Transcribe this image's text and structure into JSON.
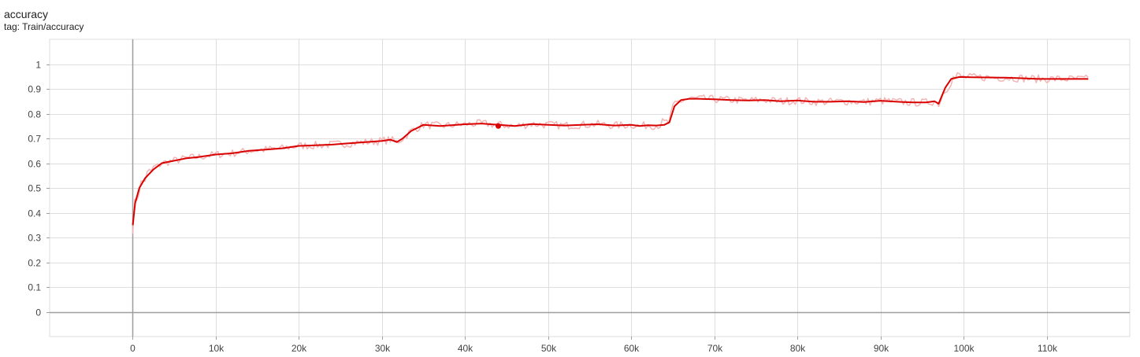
{
  "card": {
    "title": "accuracy",
    "subtitle": "tag: Train/accuracy"
  },
  "chart_data": {
    "type": "line",
    "title": "accuracy",
    "subtitle": "tag: Train/accuracy",
    "xlabel": "",
    "ylabel": "",
    "xlim": [
      -10000,
      120000
    ],
    "ylim": [
      -0.1,
      1.1
    ],
    "x_ticks": [
      0,
      10000,
      20000,
      30000,
      40000,
      50000,
      60000,
      70000,
      80000,
      90000,
      100000,
      110000
    ],
    "x_tick_labels": [
      "0",
      "10k",
      "20k",
      "30k",
      "40k",
      "50k",
      "60k",
      "70k",
      "80k",
      "90k",
      "100k",
      "110k"
    ],
    "y_ticks": [
      0,
      0.1,
      0.2,
      0.3,
      0.4,
      0.5,
      0.6,
      0.7,
      0.8,
      0.9,
      1
    ],
    "y_tick_labels": [
      "0",
      "0.1",
      "0.2",
      "0.3",
      "0.4",
      "0.5",
      "0.6",
      "0.7",
      "0.8",
      "0.9",
      "1"
    ],
    "grid": true,
    "colors": {
      "smoothed": "#d90000",
      "raw": "#f4b4b4",
      "axis": "#9e9e9e",
      "grid": "#dddddd"
    },
    "series": [
      {
        "role": "smoothed",
        "x": [
          0,
          300,
          800,
          1500,
          2500,
          3500,
          5000,
          6500,
          8000,
          10000,
          12000,
          14000,
          16000,
          18000,
          20000,
          22000,
          24000,
          26000,
          28000,
          30000,
          31000,
          31800,
          32500,
          33500,
          35000,
          37000,
          40000,
          42000,
          44000,
          46000,
          48000,
          50000,
          52000,
          54000,
          56000,
          58000,
          60000,
          61000,
          62000,
          63000,
          64000,
          64600,
          65200,
          66000,
          67000,
          68000,
          70000,
          72000,
          74000,
          76000,
          78000,
          80000,
          82000,
          84000,
          86000,
          88000,
          90000,
          92000,
          94000,
          95500,
          96500,
          97000,
          97800,
          98500,
          99500,
          101000,
          103000,
          105000,
          107000,
          109000,
          111000,
          113000,
          115000
        ],
        "y": [
          0.35,
          0.44,
          0.5,
          0.54,
          0.575,
          0.6,
          0.61,
          0.62,
          0.625,
          0.635,
          0.64,
          0.65,
          0.655,
          0.66,
          0.67,
          0.672,
          0.675,
          0.68,
          0.685,
          0.69,
          0.695,
          0.685,
          0.7,
          0.73,
          0.755,
          0.75,
          0.757,
          0.76,
          0.755,
          0.75,
          0.758,
          0.755,
          0.752,
          0.755,
          0.757,
          0.752,
          0.755,
          0.75,
          0.753,
          0.752,
          0.755,
          0.765,
          0.83,
          0.855,
          0.86,
          0.86,
          0.858,
          0.855,
          0.853,
          0.855,
          0.85,
          0.853,
          0.848,
          0.848,
          0.85,
          0.847,
          0.852,
          0.848,
          0.845,
          0.845,
          0.85,
          0.84,
          0.905,
          0.94,
          0.948,
          0.947,
          0.946,
          0.945,
          0.943,
          0.94,
          0.94,
          0.94,
          0.94
        ]
      }
    ],
    "highlight_point": {
      "x": 44000,
      "y": 0.75
    }
  }
}
